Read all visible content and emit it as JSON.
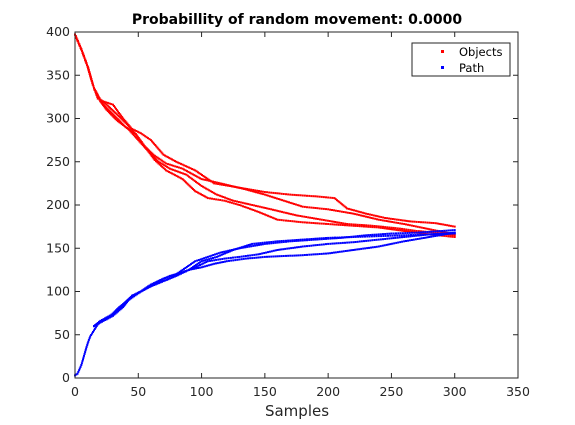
{
  "chart_data": {
    "type": "scatter",
    "title": "Probabillity of random movement: 0.0000",
    "xlabel": "Samples",
    "ylabel": "",
    "xlim": [
      0,
      350
    ],
    "ylim": [
      0,
      400
    ],
    "xticks": [
      0,
      50,
      100,
      150,
      200,
      250,
      300,
      350
    ],
    "yticks": [
      0,
      50,
      100,
      150,
      200,
      250,
      300,
      350,
      400
    ],
    "grid": false,
    "legend_position": "top-right",
    "colors": {
      "Objects": "#ff0000",
      "Path": "#0000ff"
    },
    "series": [
      {
        "name": "Objects",
        "color": "#ff0000",
        "legend": true,
        "x": [
          0,
          5,
          10,
          15,
          18,
          22,
          30,
          38,
          45,
          52,
          60,
          70,
          80,
          95,
          110,
          130,
          150,
          170,
          190,
          205,
          215,
          230,
          245,
          265,
          285,
          300
        ],
        "y": [
          397,
          380,
          360,
          335,
          323,
          320,
          316,
          300,
          288,
          283,
          275,
          258,
          250,
          240,
          225,
          220,
          215,
          212,
          210,
          208,
          196,
          190,
          185,
          181,
          179,
          175
        ]
      },
      {
        "name": "Objects",
        "color": "#ff0000",
        "legend": false,
        "x": [
          0,
          5,
          10,
          15,
          20,
          25,
          32,
          40,
          48,
          55,
          62,
          72,
          85,
          100,
          115,
          135,
          150,
          165,
          180,
          200,
          220,
          240,
          260,
          280,
          300
        ],
        "y": [
          397,
          380,
          360,
          335,
          320,
          312,
          302,
          290,
          282,
          268,
          258,
          248,
          242,
          230,
          225,
          218,
          212,
          205,
          198,
          195,
          190,
          183,
          178,
          172,
          166
        ]
      },
      {
        "name": "Objects",
        "color": "#ff0000",
        "legend": false,
        "x": [
          0,
          5,
          10,
          15,
          20,
          25,
          33,
          42,
          50,
          58,
          66,
          75,
          88,
          100,
          112,
          125,
          140,
          155,
          175,
          195,
          215,
          235,
          255,
          270,
          285,
          300
        ],
        "y": [
          397,
          380,
          360,
          335,
          320,
          310,
          298,
          288,
          275,
          262,
          250,
          242,
          235,
          222,
          212,
          205,
          200,
          195,
          188,
          183,
          178,
          176,
          173,
          170,
          168,
          165
        ]
      },
      {
        "name": "Objects",
        "color": "#ff0000",
        "legend": false,
        "x": [
          0,
          5,
          10,
          15,
          20,
          25,
          33,
          40,
          48,
          55,
          63,
          72,
          85,
          95,
          105,
          118,
          130,
          145,
          160,
          180,
          200,
          220,
          240,
          260,
          280,
          300
        ],
        "y": [
          397,
          380,
          360,
          335,
          322,
          316,
          305,
          295,
          282,
          268,
          252,
          240,
          230,
          216,
          208,
          205,
          200,
          192,
          183,
          180,
          178,
          176,
          174,
          170,
          166,
          163
        ]
      },
      {
        "name": "Path",
        "color": "#0000ff",
        "legend": true,
        "x": [
          0,
          2,
          5,
          8,
          10,
          12,
          15,
          18,
          22,
          28,
          35,
          42,
          50,
          58,
          66,
          75,
          85,
          95,
          105,
          115,
          130,
          150,
          170,
          190,
          210,
          230,
          250,
          270,
          290,
          300
        ],
        "y": [
          3,
          5,
          15,
          30,
          40,
          48,
          55,
          62,
          67,
          72,
          82,
          90,
          98,
          105,
          110,
          115,
          125,
          135,
          140,
          145,
          150,
          155,
          158,
          160,
          162,
          165,
          167,
          168,
          170,
          171
        ]
      },
      {
        "name": "Path",
        "color": "#0000ff",
        "legend": false,
        "x": [
          15,
          20,
          25,
          30,
          38,
          45,
          52,
          60,
          70,
          80,
          90,
          100,
          112,
          125,
          140,
          160,
          180,
          200,
          220,
          240,
          260,
          280,
          300
        ],
        "y": [
          60,
          65,
          68,
          72,
          82,
          95,
          100,
          106,
          112,
          118,
          125,
          135,
          140,
          148,
          155,
          158,
          160,
          162,
          163,
          164,
          165,
          166,
          167
        ]
      },
      {
        "name": "Path",
        "color": "#0000ff",
        "legend": false,
        "x": [
          15,
          20,
          25,
          30,
          35,
          42,
          50,
          58,
          66,
          75,
          85,
          95,
          105,
          118,
          130,
          145,
          160,
          180,
          200,
          220,
          240,
          260,
          280,
          300
        ],
        "y": [
          60,
          66,
          70,
          74,
          80,
          90,
          98,
          106,
          112,
          118,
          122,
          128,
          135,
          138,
          140,
          143,
          148,
          152,
          155,
          157,
          160,
          163,
          166,
          168
        ]
      },
      {
        "name": "Path",
        "color": "#0000ff",
        "legend": false,
        "x": [
          15,
          20,
          25,
          30,
          38,
          45,
          52,
          60,
          70,
          80,
          90,
          100,
          110,
          120,
          135,
          150,
          165,
          180,
          200,
          220,
          240,
          260,
          280,
          300
        ],
        "y": [
          60,
          64,
          68,
          72,
          85,
          95,
          100,
          108,
          115,
          120,
          125,
          128,
          132,
          135,
          138,
          140,
          141,
          142,
          144,
          148,
          152,
          158,
          163,
          168
        ]
      }
    ]
  }
}
